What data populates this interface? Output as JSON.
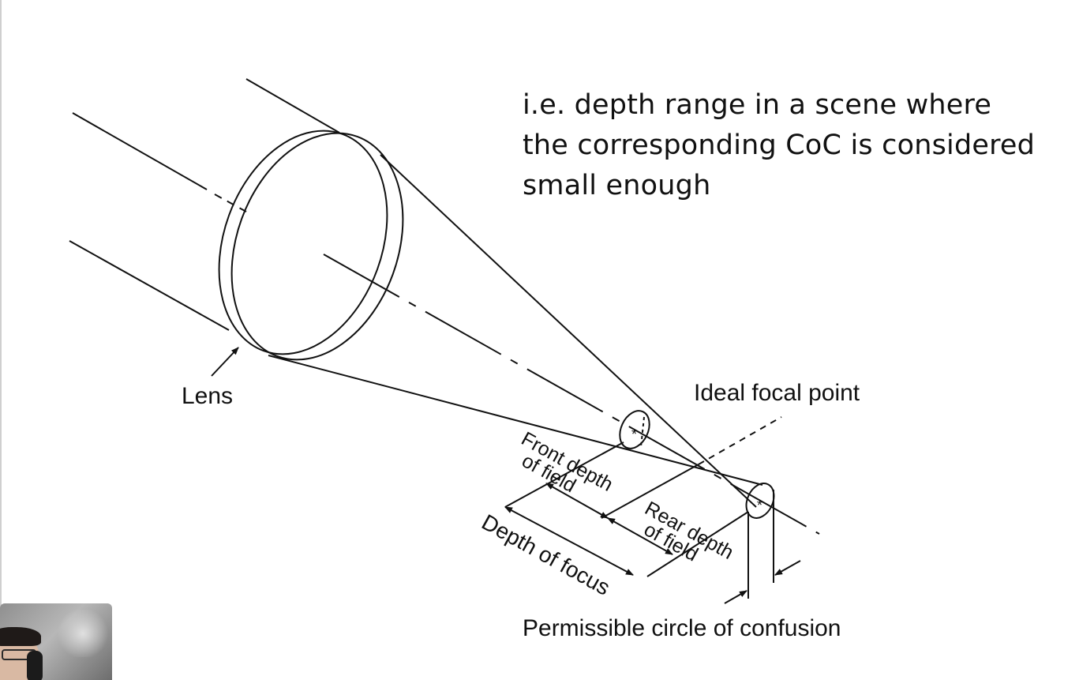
{
  "caption": {
    "lines": [
      "i.e. depth range in a scene where",
      "the corresponding CoC is considered",
      "small enough"
    ]
  },
  "diagram": {
    "labels": {
      "lens": "Lens",
      "ideal_focal_point": "Ideal focal point",
      "front_depth_line1": "Front depth",
      "front_depth_line2": "of field",
      "rear_depth_line1": "Rear depth",
      "rear_depth_line2": "of field",
      "depth_of_focus": "Depth of focus",
      "permissible_coc": "Permissible circle of confusion"
    }
  },
  "webcam": {
    "present": true
  }
}
